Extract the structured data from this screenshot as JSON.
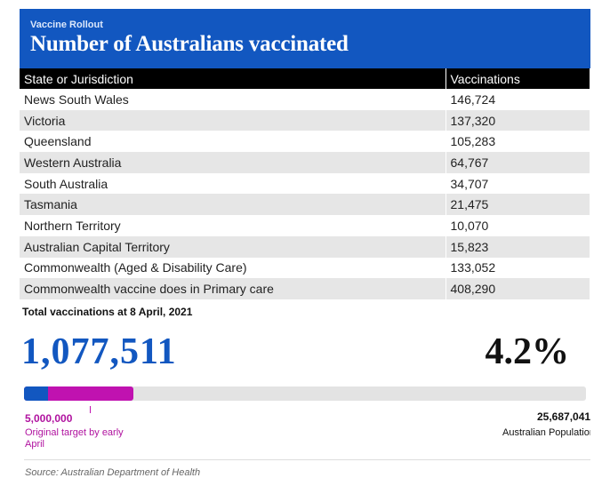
{
  "header": {
    "kicker": "Vaccine Rollout",
    "title": "Number of Australians vaccinated",
    "background_color": "#1257c0"
  },
  "chart_data": {
    "type": "table",
    "columns": [
      "State or Jurisdiction",
      "Vaccinations"
    ],
    "rows": [
      {
        "name": "News South Wales",
        "value": "146,724"
      },
      {
        "name": "Victoria",
        "value": "137,320"
      },
      {
        "name": "Queensland",
        "value": "105,283"
      },
      {
        "name": "Western Australia",
        "value": "64,767"
      },
      {
        "name": "South Australia",
        "value": "34,707"
      },
      {
        "name": "Tasmania",
        "value": "21,475"
      },
      {
        "name": "Northern Territory",
        "value": "10,070"
      },
      {
        "name": "Australian Capital Territory",
        "value": "15,823"
      },
      {
        "name": "Commonwealth (Aged & Disability Care)",
        "value": "133,052"
      },
      {
        "name": "Commonwealth vaccine does in Primary care",
        "value": "408,290"
      }
    ]
  },
  "summary": {
    "total_label": "Total vaccinations at 8 April, 2021",
    "total_value": "1,077,511",
    "percent_value": "4.2%",
    "percent_number": 4.2,
    "target_percent": 19.5,
    "target_value": "5,000,000",
    "target_note": "Original target by early April",
    "population_value": "25,687,041",
    "population_label": "Australian Population",
    "colors": {
      "vaccinated": "#1257c0",
      "target": "#c012b0",
      "track": "#e3e3e3"
    }
  },
  "footer": {
    "source": "Source: Australian Department of Health"
  }
}
